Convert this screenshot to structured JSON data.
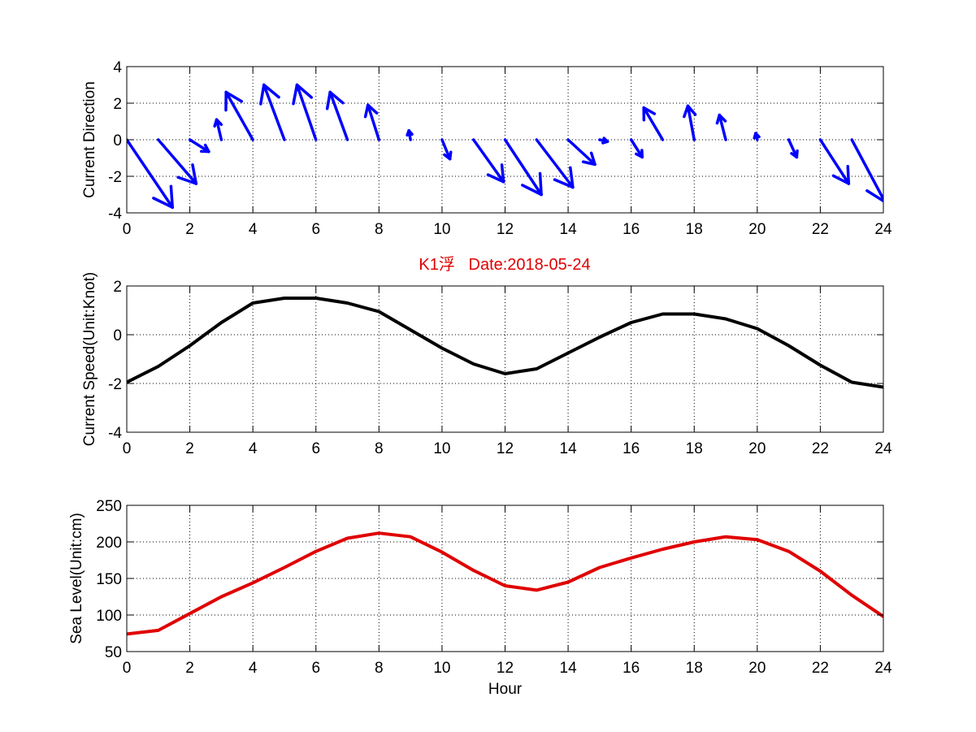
{
  "figure": {
    "title": "K1浮   Date:2018-05-24",
    "title_color": "#e00000"
  },
  "chart_data": [
    {
      "type": "quiver",
      "ylabel": "Current Direction",
      "xlabel": "",
      "xlim": [
        0,
        24
      ],
      "ylim": [
        -4,
        4
      ],
      "xticks": [
        0,
        2,
        4,
        6,
        8,
        10,
        12,
        14,
        16,
        18,
        20,
        22,
        24
      ],
      "yticks": [
        -4,
        -2,
        0,
        2,
        4
      ],
      "grid": true,
      "color": "#0000ff",
      "x": [
        0,
        1,
        2,
        3,
        4,
        5,
        6,
        7,
        8,
        9,
        10,
        11,
        12,
        13,
        14,
        15,
        16,
        17,
        18,
        19,
        20,
        21,
        22,
        23
      ],
      "u": [
        1.45,
        1.2,
        0.6,
        -0.15,
        -0.85,
        -0.65,
        -0.6,
        -0.55,
        -0.35,
        -0.05,
        0.25,
        0.95,
        1.15,
        1.15,
        0.85,
        0.25,
        0.35,
        -0.6,
        -0.2,
        -0.2,
        -0.05,
        0.25,
        0.9,
        1.05
      ],
      "v": [
        -3.7,
        -2.4,
        -0.65,
        1.1,
        2.6,
        3.0,
        3.0,
        2.6,
        1.9,
        0.5,
        -1.05,
        -2.3,
        -3.0,
        -2.6,
        -1.35,
        -0.1,
        -0.95,
        1.75,
        1.85,
        1.35,
        0.35,
        -0.95,
        -2.4,
        -3.4
      ]
    },
    {
      "type": "line",
      "ylabel": "Current Speed(Unit:Knot)",
      "xlabel": "",
      "xlim": [
        0,
        24
      ],
      "ylim": [
        -4,
        2
      ],
      "xticks": [
        0,
        2,
        4,
        6,
        8,
        10,
        12,
        14,
        16,
        18,
        20,
        22,
        24
      ],
      "yticks": [
        -4,
        -2,
        0,
        2
      ],
      "grid": true,
      "series": [
        {
          "name": "Current Speed",
          "color": "#000000",
          "x": [
            0,
            1,
            2,
            3,
            4,
            5,
            6,
            7,
            8,
            9,
            10,
            11,
            12,
            13,
            14,
            15,
            16,
            17,
            18,
            19,
            20,
            21,
            22,
            23,
            24
          ],
          "values": [
            -1.95,
            -1.3,
            -0.45,
            0.5,
            1.3,
            1.5,
            1.5,
            1.3,
            0.95,
            0.2,
            -0.55,
            -1.2,
            -1.6,
            -1.4,
            -0.75,
            -0.1,
            0.5,
            0.85,
            0.85,
            0.65,
            0.25,
            -0.45,
            -1.25,
            -1.95,
            -2.15
          ]
        }
      ]
    },
    {
      "type": "line",
      "ylabel": "Sea Level(Unit:cm)",
      "xlabel": "Hour",
      "xlim": [
        0,
        24
      ],
      "ylim": [
        50,
        250
      ],
      "xticks": [
        0,
        2,
        4,
        6,
        8,
        10,
        12,
        14,
        16,
        18,
        20,
        22,
        24
      ],
      "yticks": [
        50,
        100,
        150,
        200,
        250
      ],
      "grid": true,
      "series": [
        {
          "name": "Sea Level",
          "color": "#e00000",
          "x": [
            0,
            1,
            2,
            3,
            4,
            5,
            6,
            7,
            8,
            9,
            10,
            11,
            12,
            13,
            14,
            15,
            16,
            17,
            18,
            19,
            20,
            21,
            22,
            23,
            24
          ],
          "values": [
            74,
            79,
            102,
            125,
            144,
            165,
            187,
            205,
            212,
            207,
            186,
            161,
            140,
            134,
            145,
            165,
            178,
            190,
            200,
            207,
            203,
            187,
            160,
            127,
            98
          ]
        }
      ]
    }
  ]
}
